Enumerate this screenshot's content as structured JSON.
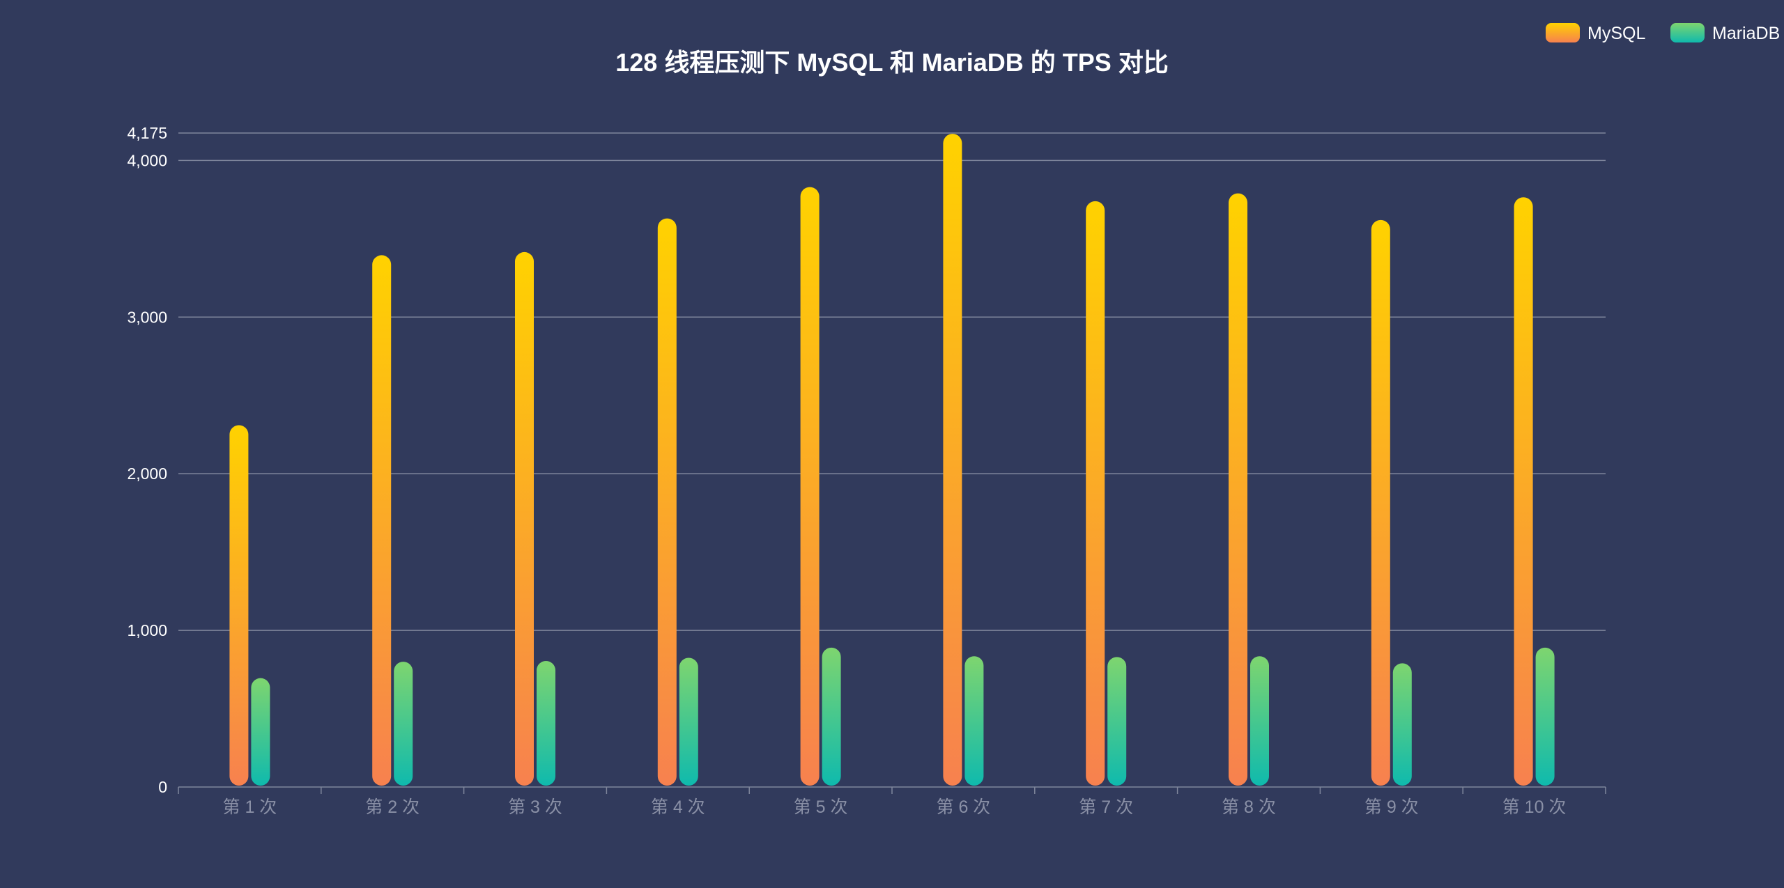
{
  "chart_data": {
    "type": "bar",
    "title": "128 线程压测下 MySQL 和 MariaDB 的 TPS 对比",
    "categories": [
      "第 1 次",
      "第 2 次",
      "第 3 次",
      "第 4 次",
      "第 5 次",
      "第 6 次",
      "第 7 次",
      "第 8 次",
      "第 9 次",
      "第 10 次"
    ],
    "series": [
      {
        "name": "MySQL",
        "values": [
          2310,
          3395,
          3415,
          3630,
          3830,
          4170,
          3740,
          3790,
          3620,
          3765
        ],
        "color_top": "#ffd200",
        "color_bottom": "#f7814f"
      },
      {
        "name": "MariaDB",
        "values": [
          695,
          800,
          805,
          825,
          890,
          835,
          830,
          835,
          790,
          890
        ],
        "color_top": "#7ed56f",
        "color_bottom": "#0fbaad"
      }
    ],
    "y_ticks": [
      0,
      1000,
      2000,
      3000,
      4000,
      4175
    ],
    "y_tick_labels": [
      "0",
      "1,000",
      "2,000",
      "3,000",
      "4,000",
      "4,175"
    ],
    "ylim": [
      0,
      4175
    ],
    "grid": true,
    "legend_position": "top-right",
    "background": "#313a5c"
  }
}
